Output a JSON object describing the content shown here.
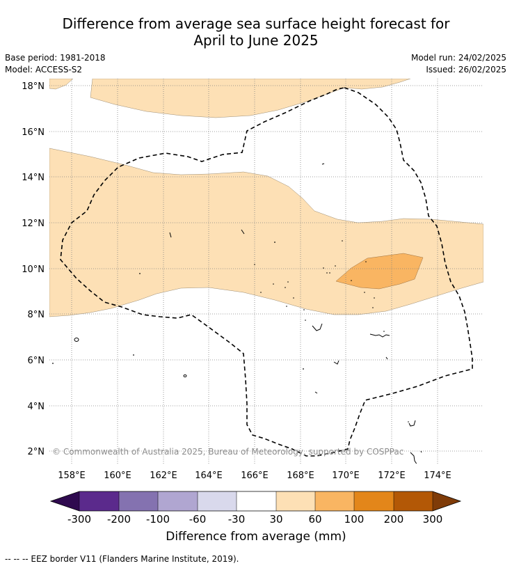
{
  "header": {
    "title_line1": "Difference from average sea surface height forecast for",
    "title_line2": "April to June 2025",
    "base_period": "Base period: 1981-2018",
    "model": "Model: ACCESS-S2",
    "model_run": "Model run: 24/02/2025",
    "issued": "Issued: 26/02/2025"
  },
  "map": {
    "lat_labels": [
      "18°N",
      "16°N",
      "14°N",
      "12°N",
      "10°N",
      "8°N",
      "6°N",
      "4°N",
      "2°N"
    ],
    "lon_labels": [
      "158°E",
      "160°E",
      "162°E",
      "164°E",
      "166°E",
      "168°E",
      "170°E",
      "172°E",
      "174°E"
    ],
    "copyright": "© Commonwealth of Australia 2025, Bureau of Meteorology, supported by COSPPac"
  },
  "colorbar": {
    "colors": [
      "#2f0a4f",
      "#5b2a8c",
      "#8472b0",
      "#b0a6d1",
      "#d9d9ec",
      "#ffffff",
      "#fde0b5",
      "#f9b562",
      "#e3861a",
      "#b35806",
      "#7f3b08"
    ],
    "tick_labels": [
      "-300",
      "-200",
      "-100",
      "-60",
      "-30",
      "30",
      "60",
      "100",
      "200",
      "300"
    ],
    "title": "Difference from average (mm)"
  },
  "footnote": "--  --  -- EEZ border V11 (Flanders Marine Institute, 2019)."
}
